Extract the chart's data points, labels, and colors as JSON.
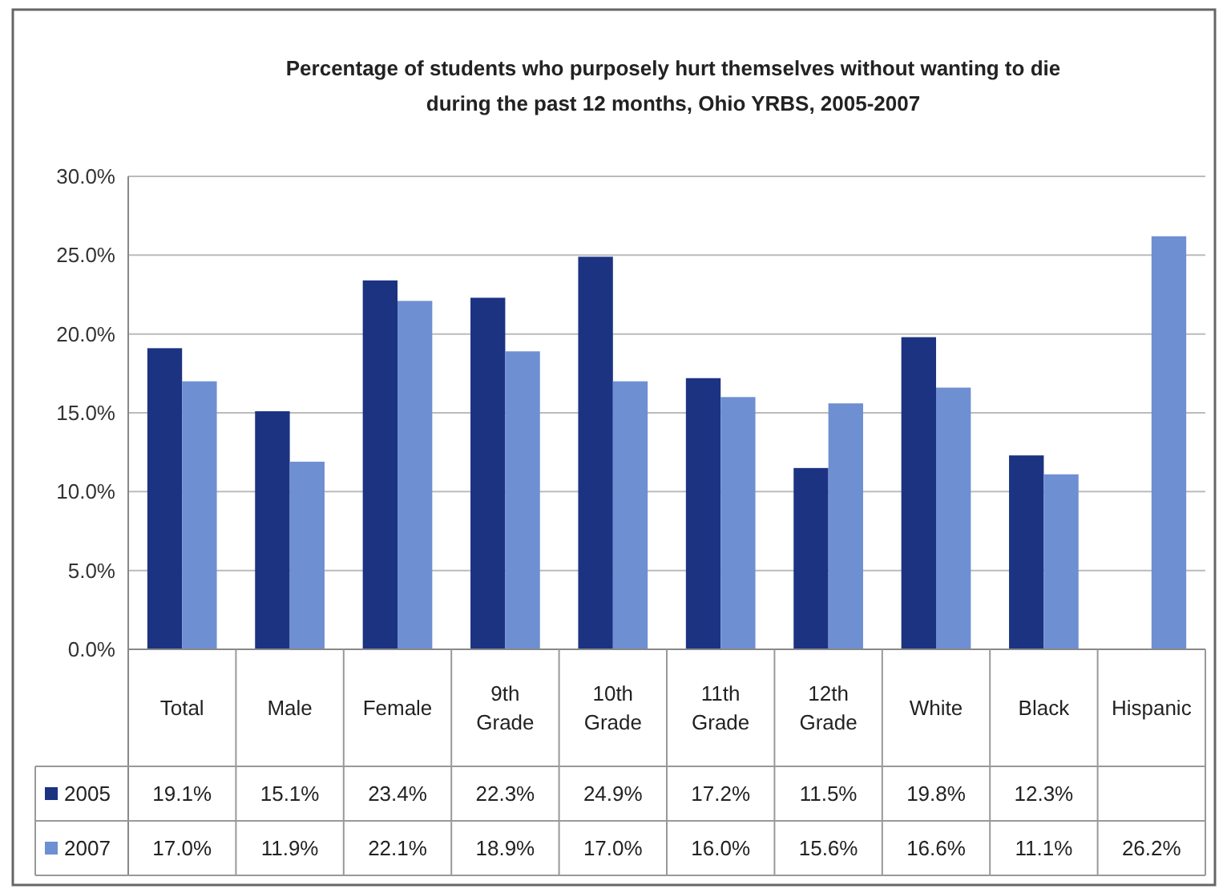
{
  "chart_data": {
    "type": "bar",
    "title": "Percentage of students who purposely hurt themselves without wanting to die during the past 12 months, Ohio YRBS, 2005-2007",
    "categories": [
      "Total",
      "Male",
      "Female",
      "9th Grade",
      "10th Grade",
      "11th Grade",
      "12th Grade",
      "White",
      "Black",
      "Hispanic"
    ],
    "series": [
      {
        "name": "2005",
        "color": "#1c3382",
        "values": [
          19.1,
          15.1,
          23.4,
          22.3,
          24.9,
          17.2,
          11.5,
          19.8,
          12.3,
          null
        ],
        "value_labels": [
          "19.1%",
          "15.1%",
          "23.4%",
          "22.3%",
          "24.9%",
          "17.2%",
          "11.5%",
          "19.8%",
          "12.3%",
          null
        ]
      },
      {
        "name": "2007",
        "color": "#6f8fd3",
        "values": [
          17.0,
          11.9,
          22.1,
          18.9,
          17.0,
          16.0,
          15.6,
          16.6,
          11.1,
          26.2
        ],
        "value_labels": [
          "17.0%",
          "11.9%",
          "22.1%",
          "18.9%",
          "17.0%",
          "16.0%",
          "15.6%",
          "16.6%",
          "11.1%",
          "26.2%"
        ]
      }
    ],
    "ylim": [
      0,
      30
    ],
    "yticks": [
      {
        "value": 0,
        "label": "0.0%"
      },
      {
        "value": 5,
        "label": "5.0%"
      },
      {
        "value": 10,
        "label": "10.0%"
      },
      {
        "value": 15,
        "label": "15.0%"
      },
      {
        "value": 20,
        "label": "20.0%"
      },
      {
        "value": 25,
        "label": "25.0%"
      },
      {
        "value": 30,
        "label": "30.0%"
      }
    ],
    "grid": "y",
    "legend": "bottom"
  }
}
